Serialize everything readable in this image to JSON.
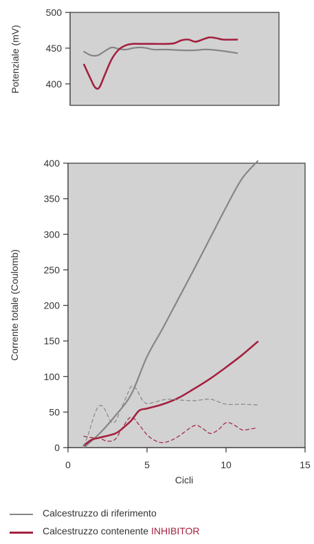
{
  "colors": {
    "reference": "#858585",
    "inhibitor": "#a3203f",
    "plot_bg": "#d2d2d2",
    "axis": "#333333"
  },
  "legend": {
    "reference_label": "Calcestruzzo di riferimento",
    "inhibitor_label_prefix": "Calcestruzzo contenente ",
    "inhibitor_label_accent": "INHIBITOR"
  },
  "chart_data": [
    {
      "type": "line",
      "title": "",
      "xlabel": "",
      "ylabel": "Potenziale (mV)",
      "xlim": [
        0,
        15
      ],
      "ylim": [
        370,
        500
      ],
      "yticks": [
        400,
        450,
        500
      ],
      "grid": false,
      "series": [
        {
          "key": "reference",
          "style": "solid",
          "x": [
            1,
            1.5,
            2,
            2.5,
            3,
            3.5,
            4,
            4.5,
            5,
            5.5,
            6,
            7,
            8,
            9,
            9.5,
            10,
            11,
            12
          ],
          "y": [
            445,
            440,
            440,
            446,
            451,
            449,
            448,
            450,
            451,
            450,
            448,
            448,
            447,
            447,
            448,
            448,
            446,
            443
          ]
        },
        {
          "key": "inhibitor",
          "style": "solid",
          "x": [
            1,
            1.5,
            1.8,
            2.1,
            2.5,
            3,
            3.5,
            4,
            4.5,
            5,
            6,
            7,
            7.5,
            8,
            8.5,
            9,
            9.5,
            10,
            10.5,
            11,
            12
          ],
          "y": [
            427,
            406,
            395,
            395,
            413,
            435,
            448,
            454,
            456,
            456,
            456,
            456,
            457,
            461,
            462,
            459,
            462,
            465,
            464,
            462,
            462
          ]
        }
      ]
    },
    {
      "type": "line",
      "title": "",
      "xlabel": "Cicli",
      "ylabel": "Corrente totale (Coulomb)",
      "xlim": [
        0,
        15
      ],
      "ylim": [
        0,
        400
      ],
      "xticks": [
        0,
        5,
        10,
        15
      ],
      "yticks": [
        0,
        50,
        100,
        150,
        200,
        250,
        300,
        350,
        400
      ],
      "grid": false,
      "series": [
        {
          "key": "reference",
          "style": "solid",
          "x": [
            1,
            2,
            3,
            4,
            5,
            6,
            7,
            8,
            9,
            10,
            11,
            12
          ],
          "y": [
            0,
            20,
            45,
            75,
            128,
            168,
            210,
            252,
            295,
            338,
            378,
            403
          ]
        },
        {
          "key": "inhibitor",
          "style": "solid",
          "x": [
            1,
            1.5,
            2,
            3,
            3.5,
            4,
            4.5,
            5,
            6,
            7,
            8,
            9,
            10,
            11,
            12
          ],
          "y": [
            3,
            11,
            14,
            20,
            28,
            38,
            52,
            55,
            61,
            70,
            83,
            97,
            113,
            130,
            149
          ]
        },
        {
          "key": "reference",
          "style": "dashed",
          "x": [
            1,
            1.3,
            1.7,
            2,
            2.3,
            2.7,
            3,
            3.3,
            3.7,
            4,
            4.3,
            4.7,
            5,
            5.5,
            6,
            6.5,
            7,
            8,
            9,
            10,
            11,
            12
          ],
          "y": [
            2,
            20,
            48,
            59,
            55,
            37,
            37,
            52,
            72,
            86,
            83,
            67,
            62,
            64,
            67,
            68,
            67,
            66,
            68,
            61,
            61,
            60
          ]
        },
        {
          "key": "inhibitor",
          "style": "dashed",
          "x": [
            1,
            1.5,
            2,
            2.5,
            3,
            3.5,
            4,
            4.5,
            5,
            5.5,
            6,
            6.5,
            7,
            8,
            8.5,
            9,
            9.5,
            10,
            10.5,
            11,
            11.5,
            12
          ],
          "y": [
            16,
            14,
            13,
            9,
            12,
            30,
            43,
            32,
            18,
            10,
            7,
            10,
            16,
            31,
            27,
            20,
            25,
            35,
            32,
            25,
            26,
            28
          ]
        }
      ]
    }
  ]
}
